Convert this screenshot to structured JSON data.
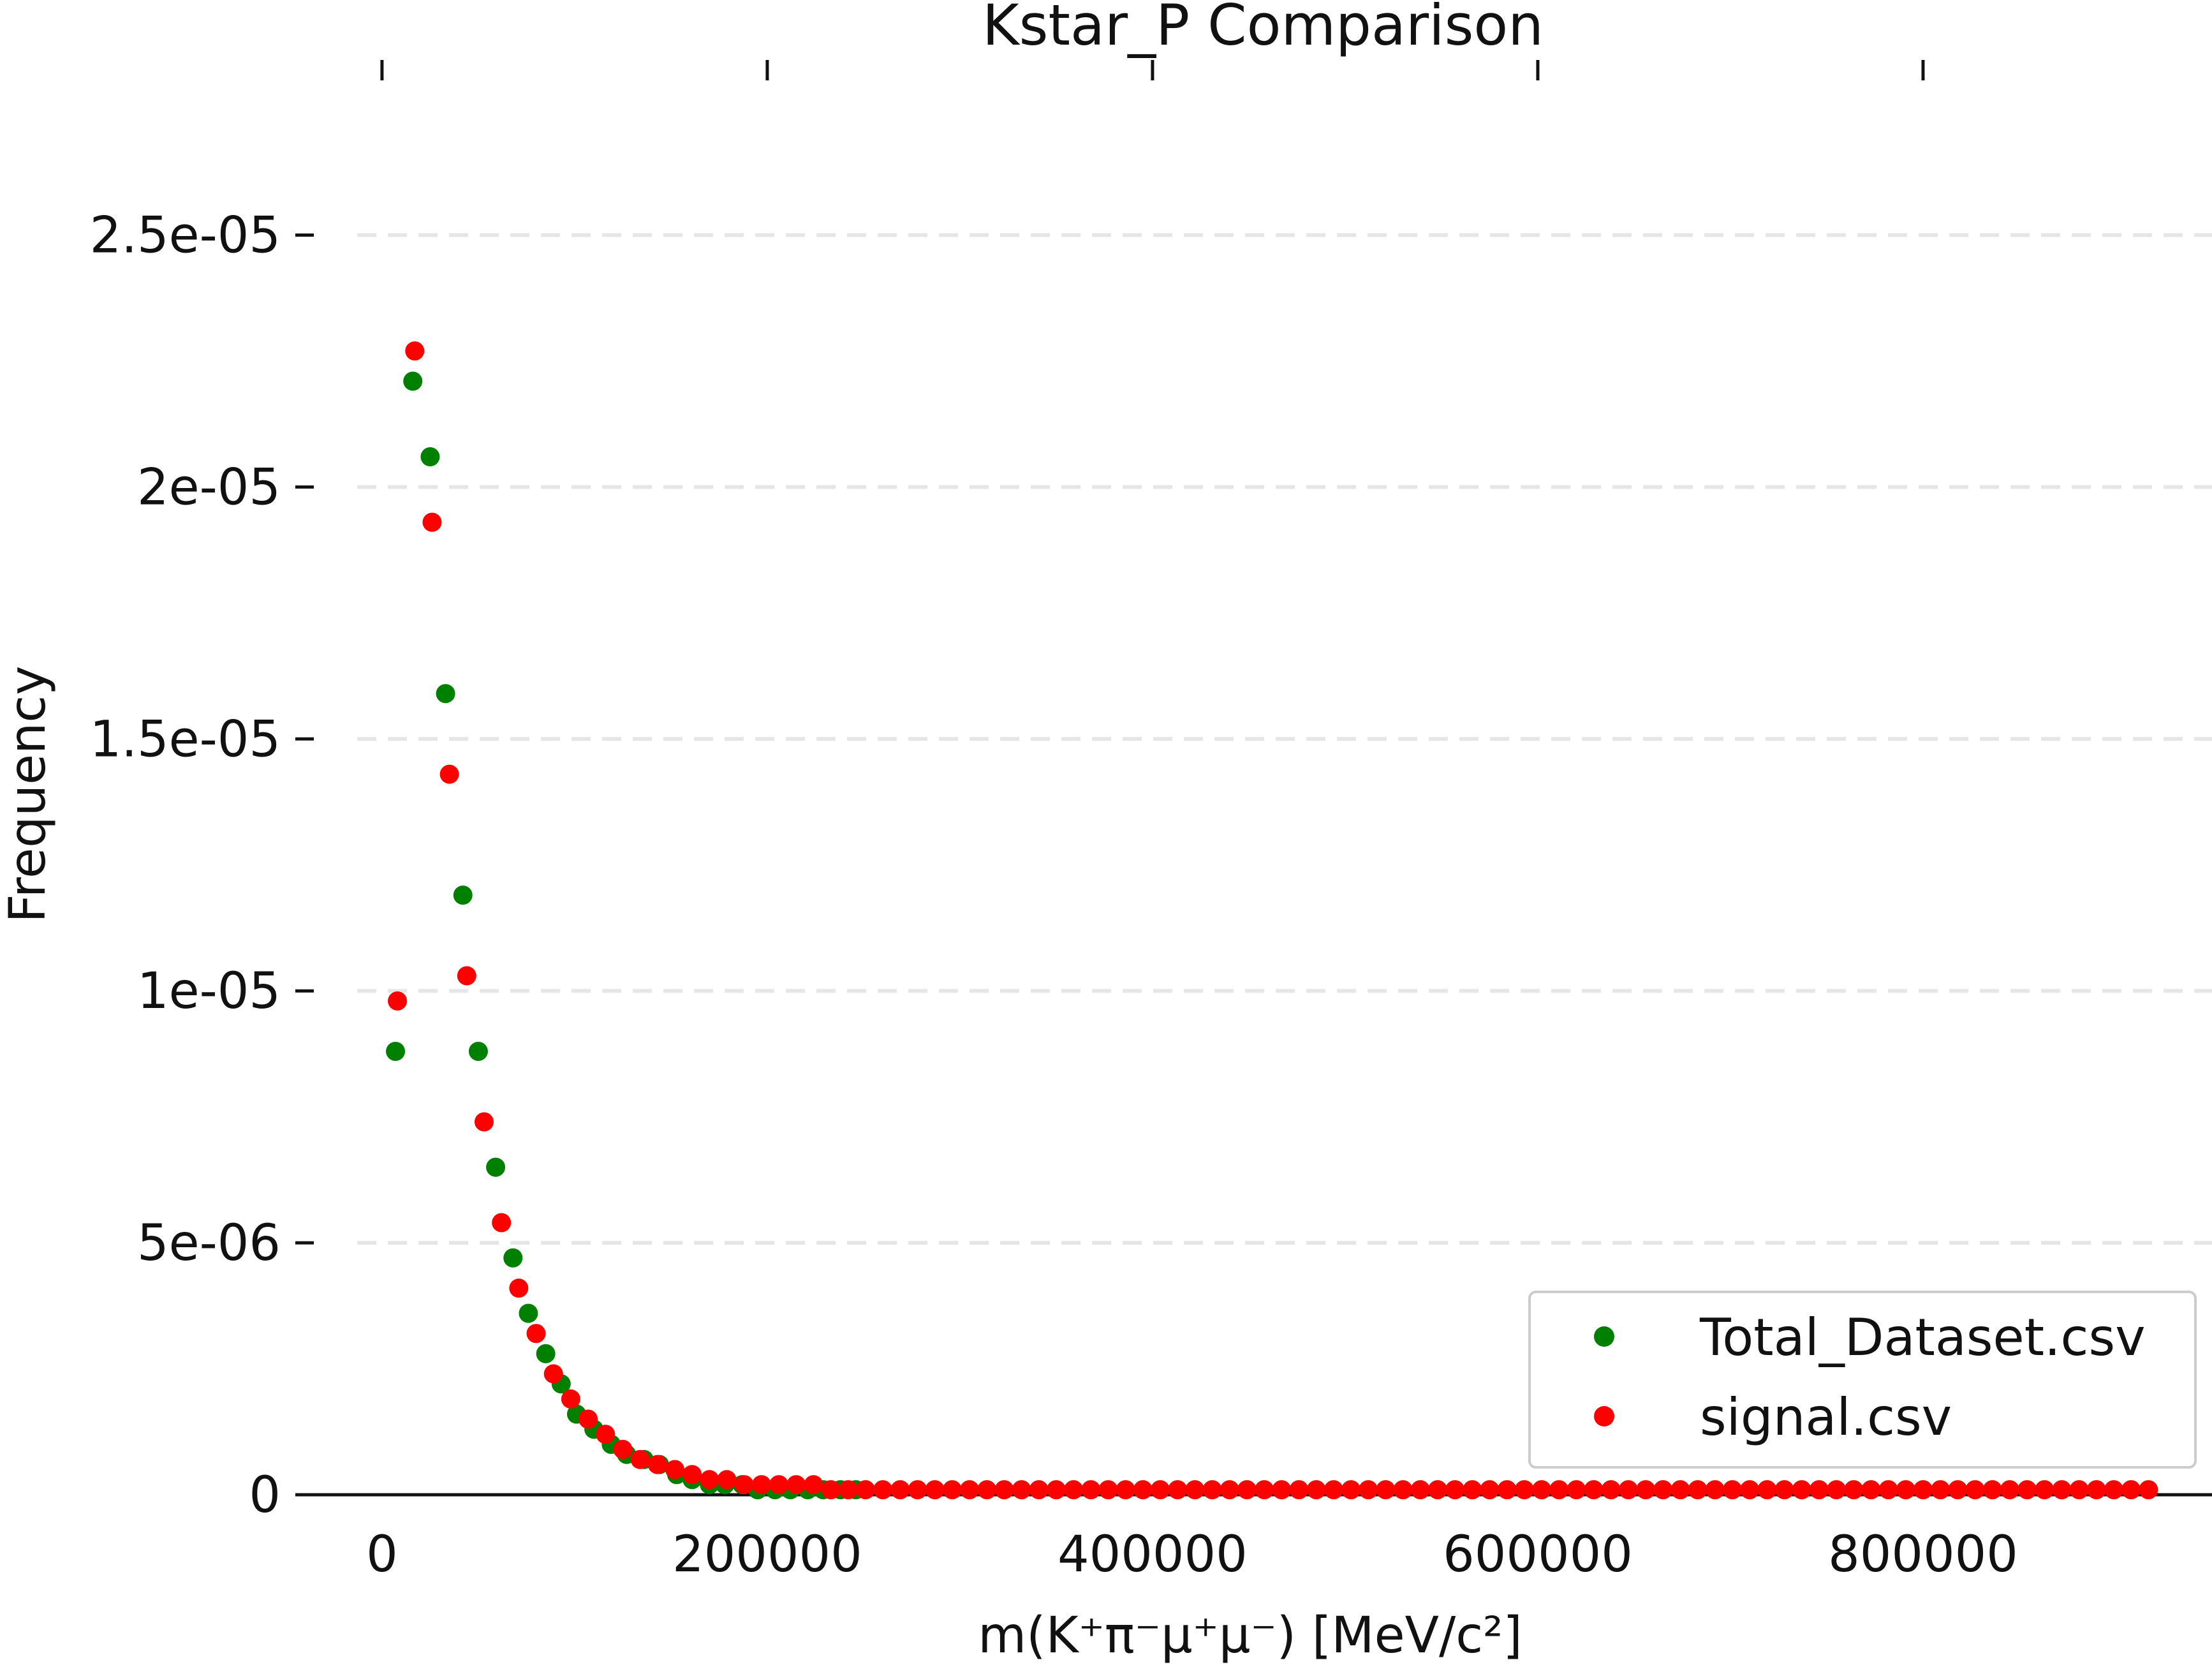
{
  "chart_data": {
    "type": "scatter",
    "title": "Kstar_P Comparison",
    "xlabel": "m(K⁺π⁻μ⁺μ⁻) [MeV/c²]",
    "ylabel": "Frequency",
    "xlim": [
      -45000,
      950000
    ],
    "ylim": [
      0,
      2.65e-05
    ],
    "xticks": [
      0,
      200000,
      400000,
      600000,
      800000
    ],
    "xtick_labels": [
      "0",
      "200000",
      "400000",
      "600000",
      "800000"
    ],
    "yticks": [
      0,
      5e-06,
      1e-05,
      1.5e-05,
      2e-05,
      2.5e-05
    ],
    "ytick_labels": [
      "0",
      "5e-06",
      "1e-05",
      "1.5e-05",
      "2e-05",
      "2.5e-05"
    ],
    "grid": "horizontal dashed",
    "legend_position": "bottom-right",
    "series": [
      {
        "name": "Total_Dataset.csv",
        "color": "#008000",
        "x": [
          7000,
          16000,
          25000,
          33000,
          42000,
          50000,
          59000,
          68000,
          76000,
          85000,
          93000,
          101000,
          110000,
          119000,
          127000,
          136000,
          144000,
          153000,
          161000,
          170000,
          178000,
          187000,
          195000,
          204000,
          212000,
          221000,
          229000,
          238000,
          246000
        ],
        "y": [
          8.8e-06,
          2.21e-05,
          2.06e-05,
          1.59e-05,
          1.19e-05,
          8.8e-06,
          6.5e-06,
          4.7e-06,
          3.6e-06,
          2.8e-06,
          2.2e-06,
          1.6e-06,
          1.3e-06,
          1e-06,
          8e-07,
          7e-07,
          6e-07,
          4e-07,
          3e-07,
          2e-07,
          2e-07,
          2e-07,
          1e-07,
          1e-07,
          1e-07,
          1e-07,
          1e-07,
          1e-07,
          1e-07
        ]
      },
      {
        "name": "signal.csv",
        "color": "#ff0000",
        "x": [
          8000,
          17000,
          26000,
          35000,
          44000,
          53000,
          62000,
          71000,
          80000,
          89000,
          98000,
          107000,
          116000,
          125000,
          134000,
          143000,
          152000,
          161000,
          170000,
          179000,
          188000,
          197000,
          206000,
          215000,
          224000,
          233000,
          242000,
          251000,
          260000,
          269000,
          278000,
          287000,
          296000,
          305000,
          314000,
          323000,
          332000,
          341000,
          350000,
          359000,
          368000,
          377000,
          386000,
          395000,
          404000,
          413000,
          422000,
          431000,
          440000,
          449000,
          458000,
          467000,
          476000,
          485000,
          494000,
          503000,
          512000,
          521000,
          530000,
          539000,
          548000,
          557000,
          566000,
          575000,
          584000,
          593000,
          602000,
          611000,
          620000,
          629000,
          638000,
          647000,
          656000,
          665000,
          674000,
          683000,
          692000,
          701000,
          710000,
          719000,
          728000,
          737000,
          746000,
          755000,
          764000,
          773000,
          782000,
          791000,
          800000,
          809000,
          818000,
          827000,
          836000,
          845000,
          854000,
          863000,
          872000,
          881000,
          890000,
          899000,
          908000,
          917000
        ],
        "y": [
          9.8e-06,
          2.27e-05,
          1.93e-05,
          1.43e-05,
          1.03e-05,
          7.4e-06,
          5.4e-06,
          4.1e-06,
          3.2e-06,
          2.4e-06,
          1.9e-06,
          1.5e-06,
          1.2e-06,
          9e-07,
          7e-07,
          6e-07,
          5e-07,
          4e-07,
          3e-07,
          3e-07,
          2e-07,
          2e-07,
          2e-07,
          2e-07,
          2e-07,
          1e-07,
          1e-07,
          1e-07,
          1e-07,
          1e-07,
          1e-07,
          1e-07,
          1e-07,
          1e-07,
          1e-07,
          1e-07,
          1e-07,
          1e-07,
          1e-07,
          1e-07,
          1e-07,
          1e-07,
          1e-07,
          1e-07,
          1e-07,
          1e-07,
          1e-07,
          1e-07,
          1e-07,
          1e-07,
          1e-07,
          1e-07,
          1e-07,
          1e-07,
          1e-07,
          1e-07,
          1e-07,
          1e-07,
          1e-07,
          1e-07,
          1e-07,
          1e-07,
          1e-07,
          1e-07,
          1e-07,
          1e-07,
          1e-07,
          1e-07,
          1e-07,
          1e-07,
          1e-07,
          1e-07,
          1e-07,
          1e-07,
          1e-07,
          1e-07,
          1e-07,
          1e-07,
          1e-07,
          1e-07,
          1e-07,
          1e-07,
          1e-07,
          1e-07,
          1e-07,
          1e-07,
          1e-07,
          1e-07,
          1e-07,
          1e-07,
          1e-07,
          1e-07,
          1e-07,
          1e-07,
          1e-07,
          1e-07,
          1e-07,
          1e-07,
          1e-07,
          1e-07,
          1e-07,
          1e-07
        ]
      }
    ]
  }
}
